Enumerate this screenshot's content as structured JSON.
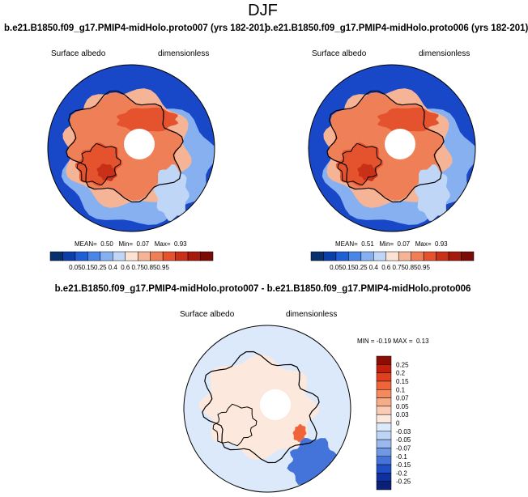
{
  "page": {
    "title": "DJF"
  },
  "panels": [
    {
      "id": "proto007",
      "title": "b.e21.B1850.f09_g17.PMIP4-midHolo.proto007 (yrs 182-201)",
      "left_label": "Surface albedo",
      "right_label": "dimensionless",
      "stats": {
        "mean_label": "MEAN=",
        "mean": "0.50",
        "min_label": "Min=",
        "min": "0.07",
        "max_label": "Max=",
        "max": "0.93"
      }
    },
    {
      "id": "proto006",
      "title": "b.e21.B1850.f09_g17.PMIP4-midHolo.proto006 (yrs 182-201)",
      "left_label": "Surface albedo",
      "right_label": "dimensionless",
      "stats": {
        "mean_label": "MEAN=",
        "mean": "0.51",
        "min_label": "Min=",
        "min": "0.07",
        "max_label": "Max=",
        "max": "0.93"
      }
    }
  ],
  "diff_panel": {
    "title": "b.e21.B1850.f09_g17.PMIP4-midHolo.proto007 - b.e21.B1850.f09_g17.PMIP4-midHolo.proto006",
    "left_label": "Surface albedo",
    "right_label": "dimensionless",
    "stats": {
      "min_label": "MIN =",
      "min": "-0.19",
      "max_label": "MAX =",
      "max": "0.13"
    }
  },
  "chart_data": [
    {
      "type": "heatmap",
      "projection": "north-polar-stereographic",
      "title": "b.e21.B1850.f09_g17.PMIP4-midHolo.proto007 (yrs 182-201)",
      "variable": "Surface albedo",
      "units": "dimensionless",
      "mean": 0.5,
      "min": 0.07,
      "max": 0.93,
      "colorbar": {
        "orientation": "horizontal",
        "labels": [
          "0.05",
          "0.15",
          "0.25",
          "0.4",
          "0.6",
          "0.75",
          "0.85",
          "0.95"
        ],
        "colors": [
          "#08306b",
          "#0b3ea8",
          "#1f5fd6",
          "#4a86e8",
          "#86b0f0",
          "#c0d6f6",
          "#fbe2d4",
          "#f6b496",
          "#ef7f57",
          "#e4532d",
          "#c83018",
          "#a6190d",
          "#7a0b05"
        ]
      }
    },
    {
      "type": "heatmap",
      "projection": "north-polar-stereographic",
      "title": "b.e21.B1850.f09_g17.PMIP4-midHolo.proto006 (yrs 182-201)",
      "variable": "Surface albedo",
      "units": "dimensionless",
      "mean": 0.51,
      "min": 0.07,
      "max": 0.93,
      "colorbar": {
        "orientation": "horizontal",
        "labels": [
          "0.05",
          "0.15",
          "0.25",
          "0.4",
          "0.6",
          "0.75",
          "0.85",
          "0.95"
        ],
        "colors": [
          "#08306b",
          "#0b3ea8",
          "#1f5fd6",
          "#4a86e8",
          "#86b0f0",
          "#c0d6f6",
          "#fbe2d4",
          "#f6b496",
          "#ef7f57",
          "#e4532d",
          "#c83018",
          "#a6190d",
          "#7a0b05"
        ]
      }
    },
    {
      "type": "heatmap",
      "projection": "north-polar-stereographic",
      "title": "b.e21.B1850.f09_g17.PMIP4-midHolo.proto007 - b.e21.B1850.f09_g17.PMIP4-midHolo.proto006",
      "variable": "Surface albedo",
      "units": "dimensionless",
      "min": -0.19,
      "max": 0.13,
      "colorbar": {
        "orientation": "vertical",
        "labels": [
          "0.25",
          "0.2",
          "0.15",
          "0.1",
          "0.07",
          "0.05",
          "0.03",
          "0",
          "-0.03",
          "-0.05",
          "-0.07",
          "-0.1",
          "-0.15",
          "-0.2",
          "-0.25"
        ],
        "colors": [
          "#8c0d04",
          "#c21f0c",
          "#e0401d",
          "#ef6438",
          "#f48a5e",
          "#f7ac88",
          "#fbccb3",
          "#fce8dc",
          "#dce9fb",
          "#bcd4f6",
          "#9ab9ef",
          "#6f98e5",
          "#4474d9",
          "#1f4fc6",
          "#0d32a0",
          "#0a2078"
        ]
      }
    }
  ]
}
